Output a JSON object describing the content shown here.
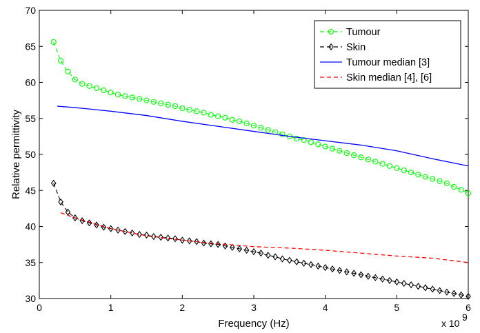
{
  "chart_data": {
    "type": "line",
    "xlabel": "Frequency (Hz)",
    "ylabel": "Relative permittivity",
    "x_multiplier_label": "x 10",
    "x_multiplier_exp": "9",
    "xlim": [
      0,
      6
    ],
    "ylim": [
      30,
      70
    ],
    "x_ticks": [
      "0",
      "1",
      "2",
      "3",
      "4",
      "5",
      "6"
    ],
    "y_ticks": [
      "30",
      "35",
      "40",
      "45",
      "50",
      "55",
      "60",
      "65",
      "70"
    ],
    "grid": false,
    "legend_position": "top-right",
    "series": [
      {
        "name": "Tumour",
        "color": "#00ff00",
        "line_style": "dashed",
        "marker": "circle",
        "x": [
          0.2,
          0.3,
          0.4,
          0.5,
          0.6,
          0.7,
          0.8,
          0.9,
          1.0,
          1.1,
          1.2,
          1.3,
          1.4,
          1.5,
          1.6,
          1.7,
          1.8,
          1.9,
          2.0,
          2.1,
          2.2,
          2.3,
          2.4,
          2.5,
          2.6,
          2.7,
          2.8,
          2.9,
          3.0,
          3.1,
          3.2,
          3.3,
          3.4,
          3.5,
          3.6,
          3.7,
          3.8,
          3.9,
          4.0,
          4.1,
          4.2,
          4.3,
          4.4,
          4.5,
          4.6,
          4.7,
          4.8,
          4.9,
          5.0,
          5.1,
          5.2,
          5.3,
          5.4,
          5.5,
          5.6,
          5.7,
          5.8,
          5.9,
          6.0
        ],
        "y": [
          65.6,
          63.0,
          61.5,
          60.4,
          59.8,
          59.5,
          59.2,
          58.9,
          58.6,
          58.3,
          58.1,
          57.9,
          57.7,
          57.5,
          57.3,
          57.1,
          56.9,
          56.7,
          56.4,
          56.2,
          56.0,
          55.8,
          55.5,
          55.3,
          55.1,
          54.8,
          54.6,
          54.3,
          54.0,
          53.7,
          53.4,
          53.1,
          52.8,
          52.5,
          52.2,
          52.0,
          51.7,
          51.4,
          51.1,
          50.8,
          50.5,
          50.2,
          49.9,
          49.6,
          49.3,
          49.0,
          48.7,
          48.4,
          48.1,
          47.8,
          47.5,
          47.2,
          46.9,
          46.6,
          46.3,
          46.0,
          45.5,
          45.1,
          44.6
        ]
      },
      {
        "name": "Skin",
        "color": "#000000",
        "line_style": "dashed",
        "marker": "diamond",
        "x": [
          0.2,
          0.3,
          0.4,
          0.5,
          0.6,
          0.7,
          0.8,
          0.9,
          1.0,
          1.1,
          1.2,
          1.3,
          1.4,
          1.5,
          1.6,
          1.7,
          1.8,
          1.9,
          2.0,
          2.1,
          2.2,
          2.3,
          2.4,
          2.5,
          2.6,
          2.7,
          2.8,
          2.9,
          3.0,
          3.1,
          3.2,
          3.3,
          3.4,
          3.5,
          3.6,
          3.7,
          3.8,
          3.9,
          4.0,
          4.1,
          4.2,
          4.3,
          4.4,
          4.5,
          4.6,
          4.7,
          4.8,
          4.9,
          5.0,
          5.1,
          5.2,
          5.3,
          5.4,
          5.5,
          5.6,
          5.7,
          5.8,
          5.9,
          6.0
        ],
        "y": [
          46.0,
          43.4,
          42.0,
          41.2,
          40.8,
          40.5,
          40.2,
          39.9,
          39.7,
          39.5,
          39.3,
          39.1,
          38.9,
          38.8,
          38.6,
          38.5,
          38.4,
          38.3,
          38.1,
          38.0,
          37.9,
          37.7,
          37.6,
          37.5,
          37.3,
          37.1,
          36.9,
          36.7,
          36.5,
          36.3,
          36.0,
          35.8,
          35.5,
          35.3,
          35.1,
          34.9,
          34.7,
          34.5,
          34.3,
          34.1,
          33.9,
          33.7,
          33.5,
          33.3,
          33.1,
          32.9,
          32.7,
          32.5,
          32.3,
          32.1,
          31.9,
          31.7,
          31.5,
          31.3,
          31.1,
          30.9,
          30.7,
          30.5,
          30.3
        ]
      },
      {
        "name": "Tumour median [3]",
        "color": "#0000ff",
        "line_style": "solid",
        "marker": "none",
        "x": [
          0.25,
          0.5,
          1.0,
          1.5,
          2.0,
          2.5,
          3.0,
          3.5,
          4.0,
          4.5,
          5.0,
          5.5,
          6.0
        ],
        "y": [
          56.7,
          56.5,
          56.0,
          55.4,
          54.6,
          53.9,
          53.2,
          52.5,
          51.9,
          51.3,
          50.5,
          49.4,
          48.4
        ]
      },
      {
        "name": "Skin median [4], [6]",
        "color": "#ff0000",
        "line_style": "dashed",
        "marker": "none",
        "x": [
          0.3,
          0.5,
          1.0,
          1.5,
          2.0,
          2.5,
          3.0,
          3.5,
          4.0,
          4.5,
          5.0,
          5.5,
          6.0
        ],
        "y": [
          41.9,
          41.2,
          39.7,
          38.7,
          38.1,
          37.6,
          37.2,
          37.0,
          36.7,
          36.3,
          35.9,
          35.6,
          35.0
        ]
      }
    ]
  }
}
